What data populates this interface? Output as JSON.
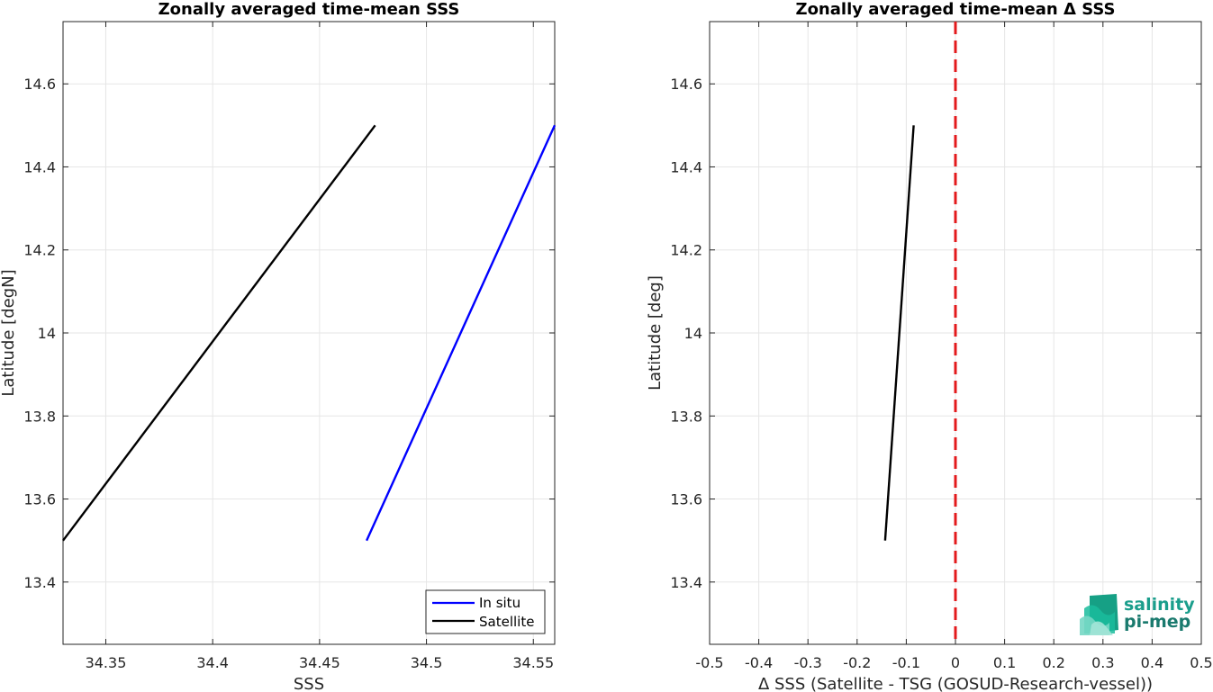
{
  "chart_data": [
    {
      "type": "line",
      "title": "Zonally averaged time-mean SSS",
      "xlabel": "SSS",
      "ylabel": "Latitude [degN]",
      "xlim": [
        34.33,
        34.56
      ],
      "ylim": [
        13.25,
        14.75
      ],
      "xticks": [
        34.35,
        34.4,
        34.45,
        34.5,
        34.55
      ],
      "xtick_labels": [
        "34.35",
        "34.4",
        "34.45",
        "34.5",
        "34.55"
      ],
      "yticks": [
        13.4,
        13.6,
        13.8,
        14.0,
        14.2,
        14.4,
        14.6
      ],
      "ytick_labels": [
        "13.4",
        "13.6",
        "13.8",
        "14",
        "14.2",
        "14.4",
        "14.6"
      ],
      "grid": true,
      "legend_position": "bottom-right",
      "series": [
        {
          "name": "In situ",
          "color": "#0000ff",
          "x": [
            34.472,
            34.56
          ],
          "y": [
            13.5,
            14.5
          ]
        },
        {
          "name": "Satellite",
          "color": "#000000",
          "x": [
            34.33,
            34.476
          ],
          "y": [
            13.5,
            14.5
          ]
        }
      ]
    },
    {
      "type": "line",
      "title": "Zonally averaged time-mean Δ SSS",
      "xlabel": "Δ SSS (Satellite - TSG (GOSUD-Research-vessel))",
      "ylabel": "Latitude [deg]",
      "xlim": [
        -0.5,
        0.5
      ],
      "ylim": [
        13.25,
        14.75
      ],
      "xticks": [
        -0.5,
        -0.4,
        -0.3,
        -0.2,
        -0.1,
        0,
        0.1,
        0.2,
        0.3,
        0.4,
        0.5
      ],
      "xtick_labels": [
        "-0.5",
        "-0.4",
        "-0.3",
        "-0.2",
        "-0.1",
        "0",
        "0.1",
        "0.2",
        "0.3",
        "0.4",
        "0.5"
      ],
      "yticks": [
        13.4,
        13.6,
        13.8,
        14.0,
        14.2,
        14.4,
        14.6
      ],
      "ytick_labels": [
        "13.4",
        "13.6",
        "13.8",
        "14",
        "14.2",
        "14.4",
        "14.6"
      ],
      "grid": true,
      "series": [
        {
          "color": "#000000",
          "x": [
            -0.143,
            -0.085
          ],
          "y": [
            13.5,
            14.5
          ]
        }
      ],
      "reference_line": {
        "x": 0,
        "color": "#e31a1c",
        "style": "dashed"
      }
    }
  ],
  "logo": {
    "line1": "salinity",
    "line2": "pi-mep",
    "color": "#1a9e8c"
  }
}
